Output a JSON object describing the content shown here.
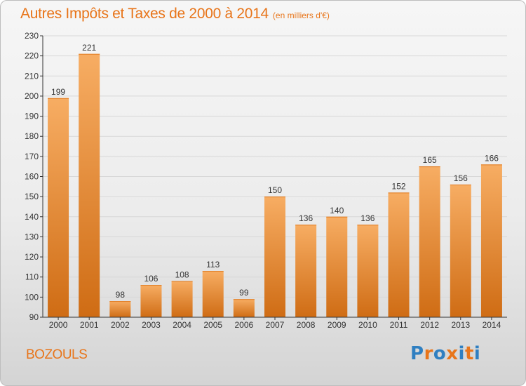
{
  "header": {
    "title": "Autres Impôts et Taxes de 2000 à 2014",
    "unit": "(en milliers d'€)"
  },
  "footer": {
    "town": "BOZOULS",
    "logo_text": "Proxiti",
    "logo_colors": [
      "#2f7fc1",
      "#e8751a",
      "#2f7fc1",
      "#e8751a",
      "#2f7fc1",
      "#e8751a",
      "#2f7fc1"
    ]
  },
  "colors": {
    "accent": "#e8751a",
    "bar_light": "#f7ad63",
    "bar_dark": "#cf6c14",
    "grid": "#d8d8d8",
    "axis": "#333333"
  },
  "chart_data": {
    "type": "bar",
    "title": "Autres Impôts et Taxes de 2000 à 2014",
    "subtitle": "(en milliers d'€)",
    "categories": [
      "2000",
      "2001",
      "2002",
      "2003",
      "2004",
      "2005",
      "2006",
      "2007",
      "2008",
      "2009",
      "2010",
      "2011",
      "2012",
      "2013",
      "2014"
    ],
    "values": [
      199,
      221,
      98,
      106,
      108,
      113,
      99,
      150,
      136,
      140,
      136,
      152,
      165,
      156,
      166
    ],
    "ylim": [
      90,
      230
    ],
    "yticks": [
      90,
      100,
      110,
      120,
      130,
      140,
      150,
      160,
      170,
      180,
      190,
      200,
      210,
      220,
      230
    ],
    "xlabel": "",
    "ylabel": "",
    "grid": true,
    "data_labels": true
  }
}
